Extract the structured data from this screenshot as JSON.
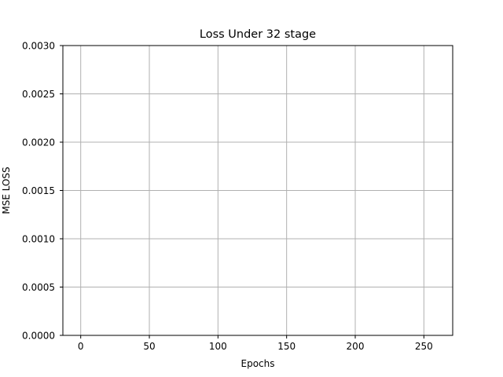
{
  "chart_data": {
    "type": "line",
    "title": "Loss Under 32 stage",
    "xlabel": "Epochs",
    "ylabel": "MSE LOSS",
    "xlim": [
      -13,
      271
    ],
    "ylim": [
      0,
      0.003
    ],
    "x_ticks": [
      0,
      50,
      100,
      150,
      200,
      250
    ],
    "y_ticks": [
      0,
      0.0005,
      0.001,
      0.0015,
      0.002,
      0.0025,
      0.003
    ],
    "x_tick_labels": [
      "0",
      "50",
      "100",
      "150",
      "200",
      "250"
    ],
    "y_tick_labels": [
      "0.0000",
      "0.0005",
      "0.0010",
      "0.0015",
      "0.0020",
      "0.0025",
      "0.0030"
    ],
    "grid": true,
    "series": [],
    "colors": {
      "grid": "#b0b0b0",
      "axes": "#000000",
      "background": "#ffffff"
    }
  }
}
